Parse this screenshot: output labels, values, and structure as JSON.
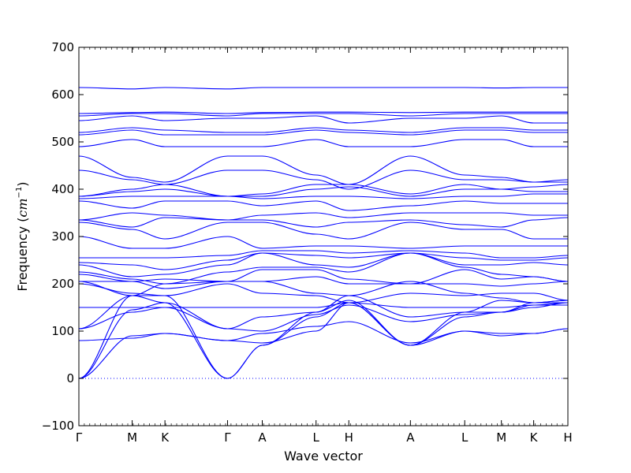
{
  "chart_data": {
    "type": "line",
    "title": "",
    "xlabel": "Wave vector",
    "ylabel": "Frequency (cm⁻¹)",
    "ylabel_text": "Frequency (",
    "ylabel_unit": "cm",
    "ylabel_exp": "−1",
    "ylabel_close": ")",
    "ylim": [
      -100,
      700
    ],
    "yticks": [
      -100,
      0,
      100,
      200,
      300,
      400,
      500,
      600,
      700
    ],
    "xlim": [
      0,
      1
    ],
    "grid": false,
    "line_color": "#0000ff",
    "zero_line": {
      "value": 0,
      "color": "#0000ff",
      "style": "dotted"
    },
    "kpoints": [
      {
        "label": "Γ",
        "x": 0.0
      },
      {
        "label": "M",
        "x": 0.109
      },
      {
        "label": "K",
        "x": 0.176
      },
      {
        "label": "Γ",
        "x": 0.304
      },
      {
        "label": "A",
        "x": 0.375
      },
      {
        "label": "L",
        "x": 0.485
      },
      {
        "label": "H",
        "x": 0.552
      },
      {
        "label": "A",
        "x": 0.678
      },
      {
        "label": "L",
        "x": 0.789
      },
      {
        "label": "M",
        "x": 0.864
      },
      {
        "label": "K",
        "x": 0.93
      },
      {
        "label": "H",
        "x": 1.0
      }
    ],
    "series": [
      {
        "x": [
          0,
          0.109,
          0.176,
          0.304,
          0.375,
          0.485,
          0.552,
          0.678,
          0.789,
          0.864,
          0.93,
          1.0
        ],
        "values": [
          0,
          145,
          160,
          0,
          70,
          130,
          160,
          70,
          130,
          140,
          155,
          160
        ]
      },
      {
        "x": [
          0,
          0.109,
          0.176,
          0.304,
          0.375,
          0.485,
          0.552,
          0.678,
          0.789,
          0.864,
          0.93,
          1.0
        ],
        "values": [
          0,
          175,
          175,
          0,
          70,
          140,
          165,
          70,
          140,
          140,
          160,
          160
        ]
      },
      {
        "x": [
          0,
          0.109,
          0.176,
          0.304,
          0.375,
          0.485,
          0.552,
          0.678,
          0.789,
          0.864,
          0.93,
          1.0
        ],
        "values": [
          0,
          90,
          95,
          80,
          95,
          110,
          120,
          75,
          100,
          90,
          95,
          105
        ]
      },
      {
        "x": [
          0,
          0.109,
          0.176,
          0.304,
          0.375,
          0.485,
          0.552,
          0.678,
          0.789,
          0.864,
          0.93,
          1.0
        ],
        "values": [
          80,
          85,
          95,
          80,
          75,
          100,
          160,
          70,
          100,
          95,
          95,
          105
        ]
      },
      {
        "x": [
          0,
          0.109,
          0.176,
          0.304,
          0.375,
          0.485,
          0.552,
          0.678,
          0.789,
          0.864,
          0.93,
          1.0
        ],
        "values": [
          105,
          140,
          150,
          105,
          100,
          135,
          155,
          120,
          135,
          140,
          150,
          160
        ]
      },
      {
        "x": [
          0,
          0.109,
          0.176,
          0.304,
          0.375,
          0.485,
          0.552,
          0.678,
          0.789,
          0.864,
          0.93,
          1.0
        ],
        "values": [
          105,
          175,
          160,
          105,
          130,
          140,
          175,
          130,
          140,
          165,
          160,
          165
        ]
      },
      {
        "x": [
          0,
          0.109,
          0.176,
          0.304,
          0.375,
          0.485,
          0.552,
          0.678,
          0.789,
          0.864,
          0.93,
          1.0
        ],
        "values": [
          150,
          150,
          150,
          150,
          150,
          150,
          160,
          150,
          150,
          150,
          155,
          155
        ]
      },
      {
        "x": [
          0,
          0.109,
          0.176,
          0.304,
          0.375,
          0.485,
          0.552,
          0.678,
          0.789,
          0.864,
          0.93,
          1.0
        ],
        "values": [
          200,
          180,
          175,
          200,
          180,
          175,
          160,
          180,
          175,
          180,
          180,
          165
        ]
      },
      {
        "x": [
          0,
          0.109,
          0.176,
          0.304,
          0.375,
          0.485,
          0.552,
          0.678,
          0.789,
          0.864,
          0.93,
          1.0
        ],
        "values": [
          205,
          175,
          200,
          205,
          205,
          180,
          175,
          205,
          180,
          170,
          160,
          165
        ]
      },
      {
        "x": [
          0,
          0.109,
          0.176,
          0.304,
          0.375,
          0.485,
          0.552,
          0.678,
          0.789,
          0.864,
          0.93,
          1.0
        ],
        "values": [
          205,
          205,
          210,
          205,
          205,
          215,
          200,
          200,
          200,
          195,
          200,
          205
        ]
      },
      {
        "x": [
          0,
          0.109,
          0.176,
          0.304,
          0.375,
          0.485,
          0.552,
          0.678,
          0.789,
          0.864,
          0.93,
          1.0
        ],
        "values": [
          220,
          205,
          190,
          205,
          230,
          230,
          210,
          200,
          230,
          210,
          215,
          205
        ]
      },
      {
        "x": [
          0,
          0.109,
          0.176,
          0.304,
          0.375,
          0.485,
          0.552,
          0.678,
          0.789,
          0.864,
          0.93,
          1.0
        ],
        "values": [
          225,
          210,
          200,
          225,
          235,
          235,
          225,
          265,
          235,
          220,
          215,
          205
        ]
      },
      {
        "x": [
          0,
          0.109,
          0.176,
          0.304,
          0.375,
          0.485,
          0.552,
          0.678,
          0.789,
          0.864,
          0.93,
          1.0
        ],
        "values": [
          240,
          215,
          220,
          240,
          265,
          240,
          235,
          265,
          240,
          240,
          245,
          240
        ]
      },
      {
        "x": [
          0,
          0.109,
          0.176,
          0.304,
          0.375,
          0.485,
          0.552,
          0.678,
          0.789,
          0.864,
          0.93,
          1.0
        ],
        "values": [
          245,
          240,
          230,
          250,
          265,
          260,
          255,
          265,
          255,
          250,
          250,
          255
        ]
      },
      {
        "x": [
          0,
          0.109,
          0.176,
          0.304,
          0.375,
          0.485,
          0.552,
          0.678,
          0.789,
          0.864,
          0.93,
          1.0
        ],
        "values": [
          255,
          255,
          255,
          260,
          270,
          270,
          265,
          270,
          265,
          255,
          255,
          260
        ]
      },
      {
        "x": [
          0,
          0.109,
          0.176,
          0.304,
          0.375,
          0.485,
          0.552,
          0.678,
          0.789,
          0.864,
          0.93,
          1.0
        ],
        "values": [
          300,
          275,
          275,
          300,
          275,
          280,
          280,
          275,
          280,
          280,
          280,
          280
        ]
      },
      {
        "x": [
          0,
          0.109,
          0.176,
          0.304,
          0.375,
          0.485,
          0.552,
          0.678,
          0.789,
          0.864,
          0.93,
          1.0
        ],
        "values": [
          330,
          315,
          295,
          330,
          330,
          305,
          295,
          330,
          315,
          315,
          295,
          295
        ]
      },
      {
        "x": [
          0,
          0.109,
          0.176,
          0.304,
          0.375,
          0.485,
          0.552,
          0.678,
          0.789,
          0.864,
          0.93,
          1.0
        ],
        "values": [
          335,
          320,
          340,
          335,
          335,
          320,
          330,
          335,
          325,
          320,
          335,
          340
        ]
      },
      {
        "x": [
          0,
          0.109,
          0.176,
          0.304,
          0.375,
          0.485,
          0.552,
          0.678,
          0.789,
          0.864,
          0.93,
          1.0
        ],
        "values": [
          335,
          350,
          345,
          335,
          345,
          350,
          340,
          350,
          350,
          350,
          345,
          345
        ]
      },
      {
        "x": [
          0,
          0.109,
          0.176,
          0.304,
          0.375,
          0.485,
          0.552,
          0.678,
          0.789,
          0.864,
          0.93,
          1.0
        ],
        "values": [
          375,
          360,
          375,
          375,
          365,
          375,
          355,
          365,
          375,
          370,
          370,
          370
        ]
      },
      {
        "x": [
          0,
          0.109,
          0.176,
          0.304,
          0.375,
          0.485,
          0.552,
          0.678,
          0.789,
          0.864,
          0.93,
          1.0
        ],
        "values": [
          380,
          385,
          385,
          385,
          380,
          385,
          385,
          380,
          385,
          385,
          390,
          390
        ]
      },
      {
        "x": [
          0,
          0.109,
          0.176,
          0.304,
          0.375,
          0.485,
          0.552,
          0.678,
          0.789,
          0.864,
          0.93,
          1.0
        ],
        "values": [
          385,
          395,
          400,
          385,
          385,
          400,
          405,
          385,
          400,
          400,
          395,
          395
        ]
      },
      {
        "x": [
          0,
          0.109,
          0.176,
          0.304,
          0.375,
          0.485,
          0.552,
          0.678,
          0.789,
          0.864,
          0.93,
          1.0
        ],
        "values": [
          385,
          400,
          410,
          385,
          390,
          410,
          410,
          390,
          410,
          400,
          405,
          410
        ]
      },
      {
        "x": [
          0,
          0.109,
          0.176,
          0.304,
          0.375,
          0.485,
          0.552,
          0.678,
          0.789,
          0.864,
          0.93,
          1.0
        ],
        "values": [
          440,
          420,
          410,
          440,
          440,
          420,
          400,
          440,
          420,
          420,
          415,
          415
        ]
      },
      {
        "x": [
          0,
          0.109,
          0.176,
          0.304,
          0.375,
          0.485,
          0.552,
          0.678,
          0.789,
          0.864,
          0.93,
          1.0
        ],
        "values": [
          470,
          425,
          415,
          470,
          470,
          430,
          410,
          470,
          430,
          425,
          415,
          420
        ]
      },
      {
        "x": [
          0,
          0.109,
          0.176,
          0.304,
          0.375,
          0.485,
          0.552,
          0.678,
          0.789,
          0.864,
          0.93,
          1.0
        ],
        "values": [
          490,
          505,
          490,
          490,
          490,
          505,
          490,
          490,
          505,
          505,
          490,
          490
        ]
      },
      {
        "x": [
          0,
          0.109,
          0.176,
          0.304,
          0.375,
          0.485,
          0.552,
          0.678,
          0.789,
          0.864,
          0.93,
          1.0
        ],
        "values": [
          515,
          525,
          515,
          515,
          515,
          525,
          520,
          515,
          525,
          525,
          520,
          520
        ]
      },
      {
        "x": [
          0,
          0.109,
          0.176,
          0.304,
          0.375,
          0.485,
          0.552,
          0.678,
          0.789,
          0.864,
          0.93,
          1.0
        ],
        "values": [
          520,
          530,
          525,
          520,
          520,
          530,
          525,
          520,
          530,
          530,
          525,
          525
        ]
      },
      {
        "x": [
          0,
          0.109,
          0.176,
          0.304,
          0.375,
          0.485,
          0.552,
          0.678,
          0.789,
          0.864,
          0.93,
          1.0
        ],
        "values": [
          545,
          555,
          545,
          550,
          550,
          555,
          540,
          550,
          550,
          555,
          540,
          540
        ]
      },
      {
        "x": [
          0,
          0.109,
          0.176,
          0.304,
          0.375,
          0.485,
          0.552,
          0.678,
          0.789,
          0.864,
          0.93,
          1.0
        ],
        "values": [
          555,
          560,
          560,
          555,
          560,
          560,
          560,
          555,
          560,
          560,
          560,
          560
        ]
      },
      {
        "x": [
          0,
          0.109,
          0.176,
          0.304,
          0.375,
          0.485,
          0.552,
          0.678,
          0.789,
          0.864,
          0.93,
          1.0
        ],
        "values": [
          560,
          562,
          563,
          560,
          562,
          563,
          563,
          562,
          563,
          563,
          563,
          563
        ]
      },
      {
        "x": [
          0,
          0.109,
          0.176,
          0.304,
          0.375,
          0.485,
          0.552,
          0.678,
          0.789,
          0.864,
          0.93,
          1.0
        ],
        "values": [
          615,
          612,
          615,
          612,
          615,
          615,
          615,
          615,
          615,
          614,
          615,
          615
        ]
      }
    ]
  }
}
